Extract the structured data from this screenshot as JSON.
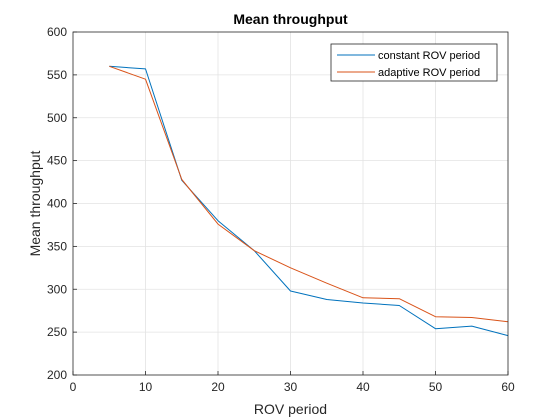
{
  "chart_data": {
    "type": "line",
    "title": "Mean throughput",
    "xlabel": "ROV period",
    "ylabel": "Mean throughput",
    "xlim": [
      0,
      60
    ],
    "ylim": [
      200,
      600
    ],
    "xticks": [
      0,
      10,
      20,
      30,
      40,
      50,
      60
    ],
    "yticks": [
      200,
      250,
      300,
      350,
      400,
      450,
      500,
      550,
      600
    ],
    "grid": true,
    "legend_position": "top-right",
    "x": [
      5,
      10,
      15,
      20,
      25,
      30,
      35,
      40,
      45,
      50,
      55,
      60
    ],
    "series": [
      {
        "name": "constant ROV period",
        "color": "#0072BD",
        "values": [
          560,
          557,
          427,
          380,
          345,
          298,
          288,
          284,
          281,
          254,
          257,
          246
        ]
      },
      {
        "name": "adaptive ROV period",
        "color": "#D95319",
        "values": [
          560,
          545,
          428,
          376,
          345,
          325,
          307,
          290,
          289,
          268,
          267,
          262
        ]
      }
    ]
  }
}
